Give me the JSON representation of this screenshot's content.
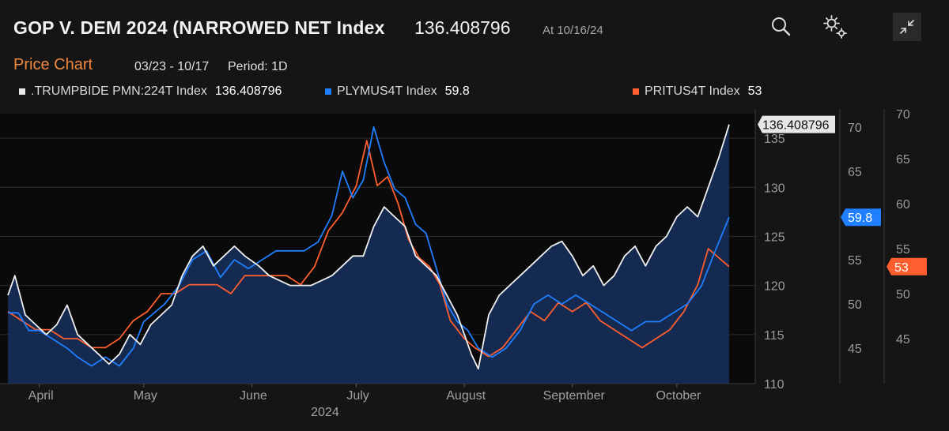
{
  "header": {
    "title": "GOP V. DEM 2024 (NARROWED NET Index",
    "last_value": "136.408796",
    "as_of": "At 10/16/24",
    "icons": [
      "search-icon",
      "settings-gears-icon",
      "collapse-icon"
    ]
  },
  "subheader": {
    "tab": "Price Chart",
    "range": "03/23 - 10/17",
    "period": "Period: 1D"
  },
  "legend": [
    {
      "name": ".TRUMPBIDE PMN:224T Index",
      "value": "136.408796",
      "color": "#e8e8e8"
    },
    {
      "name": "PLYMUS4T Index",
      "value": "59.8",
      "color": "#1f7fff"
    },
    {
      "name": "PRITUS4T Index",
      "value": "53",
      "color": "#ff5f2e"
    }
  ],
  "chart_data": {
    "type": "line",
    "x_range": [
      "2024-03-23",
      "2024-10-16"
    ],
    "month_labels": [
      "April",
      "May",
      "June",
      "July",
      "August",
      "September",
      "October"
    ],
    "year_label": "2024",
    "axes": {
      "primary": {
        "ticks": [
          "135",
          "130",
          "125",
          "120",
          "115",
          "110"
        ],
        "ylim": [
          110,
          137.5
        ]
      },
      "secondary": {
        "ticks": [
          "70",
          "65",
          "60",
          "55",
          "50",
          "45"
        ],
        "ylim": [
          41,
          71.5
        ]
      },
      "tertiary": {
        "ticks": [
          "70",
          "65",
          "60",
          "55",
          "50",
          "45"
        ],
        "ylim": [
          40,
          70
        ]
      }
    },
    "end_labels": {
      "primary": "136.408796",
      "secondary": "59.8",
      "tertiary": "53"
    },
    "series": [
      {
        "name": ".TRUMPBIDE PMN:224T Index",
        "axis": "primary",
        "area": true,
        "color": "#f0f0f0",
        "points": [
          [
            "2024-03-23",
            119
          ],
          [
            "2024-03-25",
            121
          ],
          [
            "2024-03-28",
            117
          ],
          [
            "2024-03-31",
            116
          ],
          [
            "2024-04-03",
            115
          ],
          [
            "2024-04-06",
            116
          ],
          [
            "2024-04-09",
            118
          ],
          [
            "2024-04-12",
            115
          ],
          [
            "2024-04-15",
            114
          ],
          [
            "2024-04-18",
            113
          ],
          [
            "2024-04-21",
            112
          ],
          [
            "2024-04-24",
            113
          ],
          [
            "2024-04-27",
            115
          ],
          [
            "2024-04-30",
            114
          ],
          [
            "2024-05-03",
            116
          ],
          [
            "2024-05-06",
            117
          ],
          [
            "2024-05-09",
            118
          ],
          [
            "2024-05-12",
            121
          ],
          [
            "2024-05-15",
            123
          ],
          [
            "2024-05-18",
            124
          ],
          [
            "2024-05-21",
            122
          ],
          [
            "2024-05-24",
            123
          ],
          [
            "2024-05-27",
            124
          ],
          [
            "2024-05-30",
            123
          ],
          [
            "2024-06-03",
            122
          ],
          [
            "2024-06-06",
            121
          ],
          [
            "2024-06-09",
            120.5
          ],
          [
            "2024-06-12",
            120
          ],
          [
            "2024-06-15",
            120
          ],
          [
            "2024-06-18",
            120
          ],
          [
            "2024-06-21",
            120.5
          ],
          [
            "2024-06-24",
            121
          ],
          [
            "2024-06-27",
            122
          ],
          [
            "2024-06-30",
            123
          ],
          [
            "2024-07-03",
            123
          ],
          [
            "2024-07-06",
            126
          ],
          [
            "2024-07-09",
            128
          ],
          [
            "2024-07-12",
            127
          ],
          [
            "2024-07-15",
            126
          ],
          [
            "2024-07-18",
            123
          ],
          [
            "2024-07-21",
            122
          ],
          [
            "2024-07-24",
            121
          ],
          [
            "2024-07-27",
            119
          ],
          [
            "2024-07-30",
            117
          ],
          [
            "2024-08-01",
            115
          ],
          [
            "2024-08-03",
            113
          ],
          [
            "2024-08-05",
            111.5
          ],
          [
            "2024-08-08",
            117
          ],
          [
            "2024-08-11",
            119
          ],
          [
            "2024-08-14",
            120
          ],
          [
            "2024-08-17",
            121
          ],
          [
            "2024-08-20",
            122
          ],
          [
            "2024-08-23",
            123
          ],
          [
            "2024-08-26",
            124
          ],
          [
            "2024-08-29",
            124.5
          ],
          [
            "2024-09-01",
            123
          ],
          [
            "2024-09-04",
            121
          ],
          [
            "2024-09-07",
            122
          ],
          [
            "2024-09-10",
            120
          ],
          [
            "2024-09-13",
            121
          ],
          [
            "2024-09-16",
            123
          ],
          [
            "2024-09-19",
            124
          ],
          [
            "2024-09-22",
            122
          ],
          [
            "2024-09-25",
            124
          ],
          [
            "2024-09-28",
            125
          ],
          [
            "2024-10-01",
            127
          ],
          [
            "2024-10-04",
            128
          ],
          [
            "2024-10-07",
            127
          ],
          [
            "2024-10-10",
            130
          ],
          [
            "2024-10-13",
            133
          ],
          [
            "2024-10-16",
            136.4
          ]
        ]
      },
      {
        "name": "PLYMUS4T Index",
        "axis": "secondary",
        "area": false,
        "color": "#1f7fff",
        "points": [
          [
            "2024-03-23",
            49
          ],
          [
            "2024-03-26",
            49
          ],
          [
            "2024-03-29",
            47
          ],
          [
            "2024-04-01",
            47
          ],
          [
            "2024-04-05",
            46
          ],
          [
            "2024-04-09",
            45
          ],
          [
            "2024-04-12",
            44
          ],
          [
            "2024-04-16",
            43
          ],
          [
            "2024-04-20",
            44
          ],
          [
            "2024-04-24",
            43
          ],
          [
            "2024-04-28",
            45
          ],
          [
            "2024-05-01",
            48
          ],
          [
            "2024-05-04",
            49
          ],
          [
            "2024-05-07",
            50
          ],
          [
            "2024-05-11",
            52
          ],
          [
            "2024-05-15",
            55
          ],
          [
            "2024-05-19",
            56
          ],
          [
            "2024-05-23",
            53
          ],
          [
            "2024-05-27",
            55
          ],
          [
            "2024-05-31",
            54
          ],
          [
            "2024-06-04",
            55
          ],
          [
            "2024-06-08",
            56
          ],
          [
            "2024-06-12",
            56
          ],
          [
            "2024-06-16",
            56
          ],
          [
            "2024-06-20",
            57
          ],
          [
            "2024-06-24",
            60
          ],
          [
            "2024-06-27",
            65
          ],
          [
            "2024-06-30",
            62
          ],
          [
            "2024-07-03",
            64
          ],
          [
            "2024-07-06",
            70
          ],
          [
            "2024-07-09",
            66
          ],
          [
            "2024-07-12",
            63
          ],
          [
            "2024-07-15",
            62
          ],
          [
            "2024-07-18",
            59
          ],
          [
            "2024-07-21",
            58
          ],
          [
            "2024-07-24",
            54
          ],
          [
            "2024-07-27",
            50
          ],
          [
            "2024-07-30",
            48
          ],
          [
            "2024-08-02",
            47
          ],
          [
            "2024-08-05",
            45
          ],
          [
            "2024-08-09",
            44
          ],
          [
            "2024-08-13",
            45
          ],
          [
            "2024-08-17",
            47
          ],
          [
            "2024-08-21",
            50
          ],
          [
            "2024-08-25",
            51
          ],
          [
            "2024-08-29",
            50
          ],
          [
            "2024-09-02",
            51
          ],
          [
            "2024-09-06",
            50
          ],
          [
            "2024-09-10",
            49
          ],
          [
            "2024-09-14",
            48
          ],
          [
            "2024-09-18",
            47
          ],
          [
            "2024-09-22",
            48
          ],
          [
            "2024-09-26",
            48
          ],
          [
            "2024-09-30",
            49
          ],
          [
            "2024-10-04",
            50
          ],
          [
            "2024-10-08",
            52
          ],
          [
            "2024-10-12",
            56
          ],
          [
            "2024-10-16",
            59.8
          ]
        ]
      },
      {
        "name": "PRITUS4T Index",
        "axis": "tertiary",
        "area": false,
        "color": "#ff5f2e",
        "points": [
          [
            "2024-03-23",
            48
          ],
          [
            "2024-03-27",
            47
          ],
          [
            "2024-03-31",
            46
          ],
          [
            "2024-04-04",
            46
          ],
          [
            "2024-04-08",
            45
          ],
          [
            "2024-04-12",
            45
          ],
          [
            "2024-04-16",
            44
          ],
          [
            "2024-04-20",
            44
          ],
          [
            "2024-04-24",
            45
          ],
          [
            "2024-04-28",
            47
          ],
          [
            "2024-05-02",
            48
          ],
          [
            "2024-05-06",
            50
          ],
          [
            "2024-05-10",
            50
          ],
          [
            "2024-05-14",
            51
          ],
          [
            "2024-05-18",
            51
          ],
          [
            "2024-05-22",
            51
          ],
          [
            "2024-05-26",
            50
          ],
          [
            "2024-05-30",
            52
          ],
          [
            "2024-06-03",
            52
          ],
          [
            "2024-06-07",
            52
          ],
          [
            "2024-06-11",
            52
          ],
          [
            "2024-06-15",
            51
          ],
          [
            "2024-06-19",
            53
          ],
          [
            "2024-06-23",
            57
          ],
          [
            "2024-06-27",
            59
          ],
          [
            "2024-07-01",
            62
          ],
          [
            "2024-07-04",
            67
          ],
          [
            "2024-07-07",
            62
          ],
          [
            "2024-07-10",
            63
          ],
          [
            "2024-07-13",
            60
          ],
          [
            "2024-07-16",
            56
          ],
          [
            "2024-07-19",
            54
          ],
          [
            "2024-07-22",
            53
          ],
          [
            "2024-07-25",
            51
          ],
          [
            "2024-07-28",
            47
          ],
          [
            "2024-08-01",
            45
          ],
          [
            "2024-08-04",
            44
          ],
          [
            "2024-08-08",
            43
          ],
          [
            "2024-08-12",
            44
          ],
          [
            "2024-08-16",
            46
          ],
          [
            "2024-08-20",
            48
          ],
          [
            "2024-08-24",
            47
          ],
          [
            "2024-08-28",
            49
          ],
          [
            "2024-09-01",
            48
          ],
          [
            "2024-09-05",
            49
          ],
          [
            "2024-09-09",
            47
          ],
          [
            "2024-09-13",
            46
          ],
          [
            "2024-09-17",
            45
          ],
          [
            "2024-09-21",
            44
          ],
          [
            "2024-09-25",
            45
          ],
          [
            "2024-09-29",
            46
          ],
          [
            "2024-10-03",
            48
          ],
          [
            "2024-10-07",
            51
          ],
          [
            "2024-10-10",
            55
          ],
          [
            "2024-10-13",
            54
          ],
          [
            "2024-10-16",
            53
          ]
        ]
      }
    ]
  }
}
